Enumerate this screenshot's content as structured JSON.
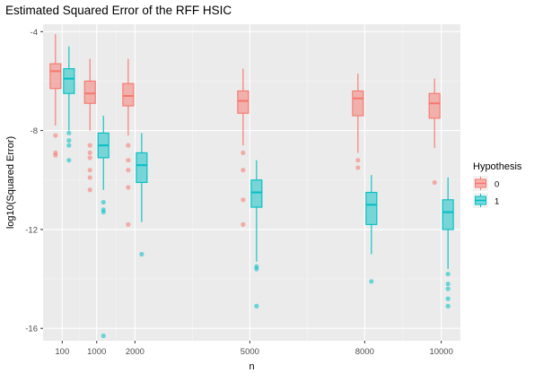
{
  "chart_data": {
    "type": "box",
    "title": "Estimated Squared Error of the RFF HSIC",
    "xlabel": "n",
    "ylabel": "log10(Squared Error)",
    "x": [
      100,
      1000,
      2000,
      5000,
      8000,
      10000
    ],
    "x_tick_labels": [
      "100",
      "1000",
      "2000",
      "5000",
      "8000",
      "10000"
    ],
    "y_ticks": [
      -4,
      -8,
      -12,
      -16
    ],
    "y_tick_labels": [
      "-4",
      "-8",
      "-12",
      "-16"
    ],
    "xlim": [
      -400,
      10500
    ],
    "ylim": [
      -16.5,
      -3.7
    ],
    "grid": true,
    "legend": {
      "title": "Hypothesis",
      "position": "right",
      "entries": [
        {
          "label": "0",
          "color": "#F8766D"
        },
        {
          "label": "1",
          "color": "#00BFC4"
        }
      ]
    },
    "series": [
      {
        "name": "0",
        "color": "#F8766D",
        "boxes": [
          {
            "x": 100,
            "whisker_low": -7.8,
            "q1": -6.3,
            "median": -5.6,
            "q3": -5.3,
            "whisker_high": -4.1,
            "outliers": [
              -8.2,
              -8.9,
              -9.0
            ]
          },
          {
            "x": 1000,
            "whisker_low": -8.0,
            "q1": -6.9,
            "median": -6.5,
            "q3": -6.0,
            "whisker_high": -5.1,
            "outliers": [
              -8.6,
              -8.9,
              -9.1,
              -9.6,
              -9.9,
              -10.4
            ]
          },
          {
            "x": 2000,
            "whisker_low": -8.2,
            "q1": -7.0,
            "median": -6.6,
            "q3": -6.1,
            "whisker_high": -5.1,
            "outliers": [
              -8.6,
              -9.2,
              -9.6,
              -10.3,
              -11.8
            ]
          },
          {
            "x": 5000,
            "whisker_low": -8.6,
            "q1": -7.3,
            "median": -6.8,
            "q3": -6.4,
            "whisker_high": -5.5,
            "outliers": [
              -8.9,
              -9.6,
              -10.8,
              -11.8
            ]
          },
          {
            "x": 8000,
            "whisker_low": -8.9,
            "q1": -7.4,
            "median": -6.7,
            "q3": -6.4,
            "whisker_high": -5.7,
            "outliers": [
              -9.2,
              -9.5
            ]
          },
          {
            "x": 10000,
            "whisker_low": -8.7,
            "q1": -7.5,
            "median": -6.9,
            "q3": -6.5,
            "whisker_high": -5.9,
            "outliers": [
              -10.1
            ]
          }
        ]
      },
      {
        "name": "1",
        "color": "#00BFC4",
        "boxes": [
          {
            "x": 100,
            "whisker_low": -8.0,
            "q1": -6.5,
            "median": -5.9,
            "q3": -5.5,
            "whisker_high": -4.6,
            "outliers": [
              -8.1,
              -8.4,
              -8.6,
              -9.2
            ]
          },
          {
            "x": 1000,
            "whisker_low": -10.4,
            "q1": -9.1,
            "median": -8.6,
            "q3": -8.1,
            "whisker_high": -7.4,
            "outliers": [
              -10.9,
              -11.2,
              -11.3,
              -16.3
            ]
          },
          {
            "x": 2000,
            "whisker_low": -11.7,
            "q1": -10.1,
            "median": -9.4,
            "q3": -8.9,
            "whisker_high": -8.1,
            "outliers": [
              -13.0
            ]
          },
          {
            "x": 5000,
            "whisker_low": -13.3,
            "q1": -11.1,
            "median": -10.5,
            "q3": -10.0,
            "whisker_high": -9.2,
            "outliers": [
              -13.5,
              -13.6,
              -15.1
            ]
          },
          {
            "x": 8000,
            "whisker_low": -13.0,
            "q1": -11.8,
            "median": -11.0,
            "q3": -10.5,
            "whisker_high": -9.8,
            "outliers": [
              -14.1
            ]
          },
          {
            "x": 10000,
            "whisker_low": -13.6,
            "q1": -12.0,
            "median": -11.3,
            "q3": -10.8,
            "whisker_high": -9.9,
            "outliers": [
              -13.8,
              -14.2,
              -14.4,
              -14.8,
              -15.1
            ]
          }
        ]
      }
    ]
  }
}
